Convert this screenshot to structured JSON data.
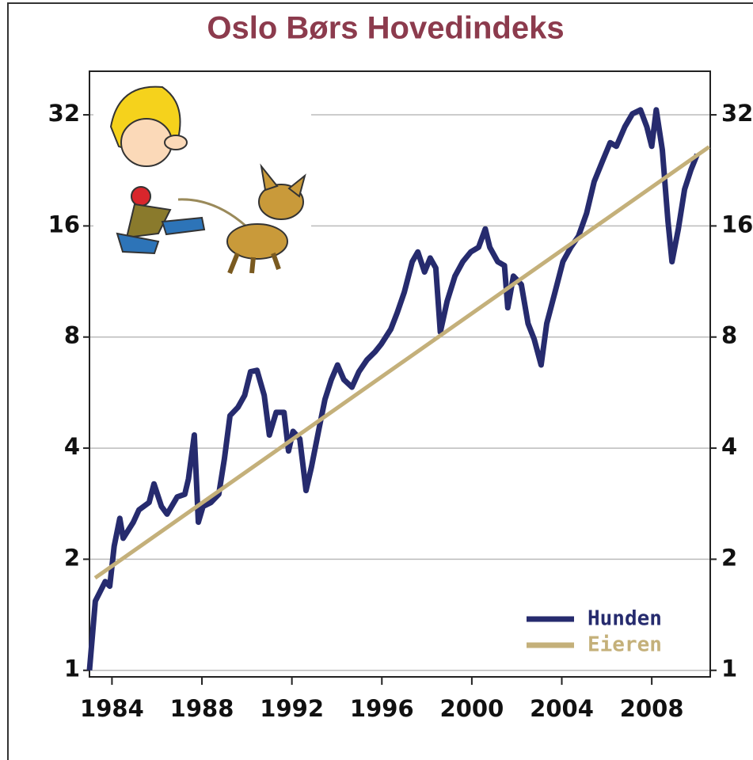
{
  "chart_data": {
    "type": "line",
    "title": "Oslo Børs Hovedindeks",
    "log_scale": true,
    "grid": true,
    "legend": "lower right",
    "xlim": [
      1983,
      2010.6
    ],
    "xticks": [
      1984,
      1988,
      1992,
      1996,
      2000,
      2004,
      2008
    ],
    "ylim": [
      0.96,
      42
    ],
    "yticks": [
      1,
      2,
      4,
      8,
      16,
      32
    ],
    "series": [
      {
        "name": "Hunden",
        "color": "#262b6e",
        "x": [
          1983.0,
          1983.26,
          1983.7,
          1983.9,
          1984.1,
          1984.35,
          1984.5,
          1984.95,
          1985.2,
          1985.65,
          1985.87,
          1986.2,
          1986.45,
          1986.9,
          1987.24,
          1987.4,
          1987.66,
          1987.84,
          1988.05,
          1988.4,
          1988.75,
          1989.0,
          1989.25,
          1989.6,
          1989.9,
          1990.16,
          1990.45,
          1990.77,
          1991.0,
          1991.3,
          1991.65,
          1991.85,
          1992.05,
          1992.35,
          1992.63,
          1992.87,
          1993.22,
          1993.47,
          1993.75,
          1994.03,
          1994.31,
          1994.67,
          1994.98,
          1995.34,
          1995.7,
          1995.97,
          1996.4,
          1996.68,
          1997.0,
          1997.35,
          1997.6,
          1997.9,
          1998.15,
          1998.4,
          1998.6,
          1998.9,
          1999.25,
          1999.6,
          1999.95,
          2000.3,
          2000.6,
          2000.8,
          2001.15,
          2001.45,
          2001.6,
          2001.85,
          2002.2,
          2002.5,
          2002.77,
          2003.08,
          2003.33,
          2003.7,
          2004.05,
          2004.4,
          2004.74,
          2005.1,
          2005.44,
          2005.8,
          2006.15,
          2006.43,
          2006.8,
          2007.14,
          2007.5,
          2007.78,
          2008.0,
          2008.2,
          2008.47,
          2008.72,
          2008.9,
          2009.18,
          2009.46,
          2009.74,
          2010.02
        ],
        "values": [
          1.0,
          1.54,
          1.74,
          1.69,
          2.17,
          2.58,
          2.28,
          2.52,
          2.72,
          2.85,
          3.2,
          2.78,
          2.65,
          2.95,
          3.0,
          3.3,
          4.34,
          2.52,
          2.78,
          2.85,
          3.0,
          3.74,
          4.9,
          5.16,
          5.56,
          6.44,
          6.5,
          5.56,
          4.34,
          5.0,
          5.0,
          3.93,
          4.44,
          4.24,
          3.07,
          3.56,
          4.56,
          5.42,
          6.13,
          6.72,
          6.13,
          5.85,
          6.44,
          6.94,
          7.3,
          7.65,
          8.4,
          9.3,
          10.6,
          12.8,
          13.6,
          12.0,
          13.1,
          12.3,
          8.25,
          10.0,
          11.7,
          12.8,
          13.6,
          14.0,
          15.7,
          14.0,
          12.8,
          12.5,
          9.6,
          11.7,
          11.1,
          8.7,
          7.9,
          6.72,
          8.7,
          10.6,
          12.8,
          14.0,
          15.0,
          17.3,
          21.1,
          23.9,
          26.9,
          26.3,
          29.7,
          32.2,
          33.0,
          29.7,
          26.3,
          33.0,
          25.7,
          16.5,
          12.8,
          15.7,
          20.1,
          22.7,
          25.0
        ]
      },
      {
        "name": "Eieren",
        "color": "#c4b07a",
        "x": [
          1983.25,
          2010.55
        ],
        "values": [
          1.78,
          26.2
        ]
      }
    ]
  }
}
